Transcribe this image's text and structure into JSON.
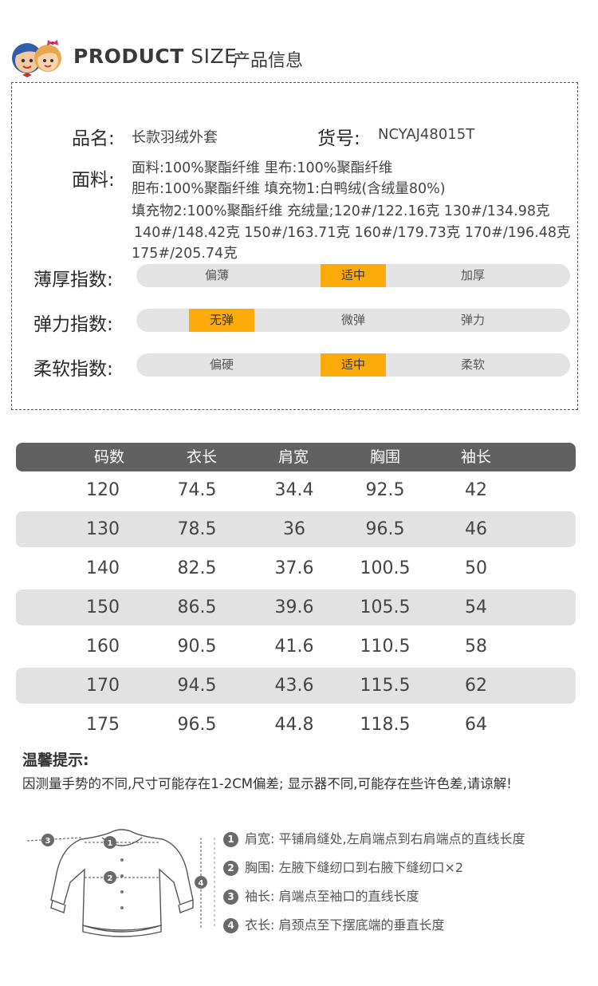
{
  "header": {
    "title_en_bold": "PRODUCT",
    "title_en_light": "SIZE",
    "title_zh": "产品信息"
  },
  "info": {
    "name_label": "品名:",
    "name_value": "长款羽绒外套",
    "sku_label": "货号:",
    "sku_value": "NCYAJ48015T",
    "fabric_label": "面料:",
    "fabric_lines": [
      "面料:100%聚酯纤维 里布:100%聚酯纤维",
      "胆布:100%聚酯纤维 填充物1:白鸭绒(含绒量80%)",
      "填充物2:100%聚酯纤维 充绒量;120#/122.16克 130#/134.98克",
      "140#/148.42克 150#/163.71克 160#/179.73克 170#/196.48克",
      "175#/205.74克"
    ]
  },
  "indices": [
    {
      "label": "薄厚指数:",
      "options": [
        "偏薄",
        "适中",
        "加厚"
      ],
      "selected_index": 1
    },
    {
      "label": "弹力指数:",
      "options": [
        "无弹",
        "微弹",
        "弹力"
      ],
      "selected_index": 0
    },
    {
      "label": "柔软指数:",
      "options": [
        "偏硬",
        "适中",
        "柔软"
      ],
      "selected_index": 1
    }
  ],
  "colors": {
    "accent": "#fcab0b",
    "table_header": "#616161",
    "row_alt": "#e2e2e2",
    "bar_bg": "#e4e4e4"
  },
  "size_table": {
    "headers": [
      "码数",
      "衣长",
      "肩宽",
      "胸围",
      "袖长"
    ],
    "rows": [
      [
        "120",
        "74.5",
        "34.4",
        "92.5",
        "42"
      ],
      [
        "130",
        "78.5",
        "36",
        "96.5",
        "46"
      ],
      [
        "140",
        "82.5",
        "37.6",
        "100.5",
        "50"
      ],
      [
        "150",
        "86.5",
        "39.6",
        "105.5",
        "54"
      ],
      [
        "160",
        "90.5",
        "41.6",
        "110.5",
        "58"
      ],
      [
        "170",
        "94.5",
        "43.6",
        "115.5",
        "62"
      ],
      [
        "175",
        "96.5",
        "44.8",
        "118.5",
        "64"
      ]
    ]
  },
  "tips": {
    "title": "温馨提示:",
    "text": "因测量手势的不同,尺寸可能存在1-2CM偏差; 显示器不同,可能存在些许色差,请谅解!"
  },
  "guide": {
    "markers": [
      "1",
      "2",
      "3",
      "4"
    ],
    "items": [
      {
        "num": "1",
        "text": "肩宽: 平铺肩缝处,左肩端点到右肩端点的直线长度"
      },
      {
        "num": "2",
        "text": "胸围: 左腋下缝纫口到右腋下缝纫口×2"
      },
      {
        "num": "3",
        "text": "袖长: 肩端点至袖口的直线长度"
      },
      {
        "num": "4",
        "text": "衣长: 肩颈点至下摆底端的垂直长度"
      }
    ]
  }
}
